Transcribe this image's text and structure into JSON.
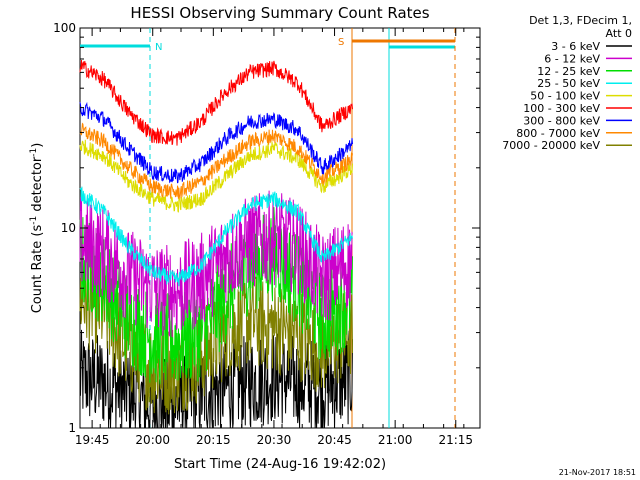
{
  "chart_data": {
    "type": "line",
    "title": "HESSI Observing Summary Count Rates",
    "xlabel": "Start Time (24-Aug-16 19:42:02)",
    "ylabel_pre": "Count Rate (s",
    "ylabel_sup": "-1",
    "ylabel_post": " detector",
    "ylabel_sup2": "-1",
    "ylabel_end": ")",
    "yscale": "log",
    "ylim": [
      1,
      100
    ],
    "y_ticks": [
      {
        "value": 1,
        "label": "1"
      },
      {
        "value": 10,
        "label": "10"
      },
      {
        "value": 100,
        "label": "100"
      }
    ],
    "xlim_minutes": [
      0,
      99
    ],
    "x_ticks": [
      {
        "minute": 3,
        "label": "19:45"
      },
      {
        "minute": 18,
        "label": "20:00"
      },
      {
        "minute": 33,
        "label": "20:15"
      },
      {
        "minute": 48,
        "label": "20:30"
      },
      {
        "minute": 63,
        "label": "20:45"
      },
      {
        "minute": 78,
        "label": "21:00"
      },
      {
        "minute": 93,
        "label": "21:15"
      }
    ],
    "legend_header": [
      "Det 1,3, FDecim 1,",
      "Att 0"
    ],
    "legend_placement": "right",
    "series": [
      {
        "name": "3 - 6 keV",
        "color": "#000000",
        "x": [
          0,
          6,
          12,
          18,
          24,
          30,
          36,
          42,
          48,
          54,
          60,
          67.5
        ],
        "y": [
          1.8,
          1.7,
          1.5,
          1.3,
          1.3,
          1.5,
          1.6,
          1.7,
          1.8,
          1.7,
          1.6,
          1.8
        ]
      },
      {
        "name": "6 - 12 keV",
        "color": "#cc00cc",
        "x": [
          0,
          6,
          12,
          18,
          24,
          30,
          36,
          42,
          48,
          54,
          60,
          67.5
        ],
        "y": [
          8.5,
          7.5,
          5.8,
          5.0,
          4.8,
          5.5,
          7.2,
          8.5,
          9.0,
          8.0,
          5.5,
          7.0
        ]
      },
      {
        "name": "12 - 25 keV",
        "color": "#00dd00",
        "x": [
          0,
          6,
          12,
          18,
          24,
          30,
          36,
          42,
          48,
          54,
          60,
          67.5
        ],
        "y": [
          7.0,
          5.5,
          3.5,
          2.8,
          2.7,
          3.0,
          4.5,
          6.5,
          7.5,
          5.5,
          3.5,
          4.5
        ]
      },
      {
        "name": "25 - 50 keV",
        "color": "#00eeee",
        "x": [
          0,
          6,
          12,
          18,
          24,
          30,
          36,
          42,
          48,
          54,
          60,
          67.5
        ],
        "y": [
          15,
          12,
          8.0,
          6.0,
          5.5,
          6.5,
          9.5,
          13,
          14,
          12,
          7.0,
          9.0
        ]
      },
      {
        "name": "50 - 100 keV",
        "color": "#dddd00",
        "x": [
          0,
          6,
          12,
          18,
          24,
          30,
          36,
          42,
          48,
          54,
          60,
          67.5
        ],
        "y": [
          26,
          23,
          17,
          14,
          13,
          14,
          18,
          23,
          25,
          22,
          16,
          20
        ]
      },
      {
        "name": "100 - 300 keV",
        "color": "#ff0000",
        "x": [
          0,
          6,
          12,
          18,
          24,
          30,
          36,
          42,
          48,
          54,
          60,
          67.5
        ],
        "y": [
          65,
          55,
          38,
          29,
          28,
          34,
          48,
          60,
          63,
          53,
          32,
          40
        ]
      },
      {
        "name": "300 - 800 keV",
        "color": "#0000ff",
        "x": [
          0,
          6,
          12,
          18,
          24,
          30,
          36,
          42,
          48,
          54,
          60,
          67.5
        ],
        "y": [
          40,
          35,
          25,
          19,
          18,
          21,
          28,
          34,
          35,
          31,
          20,
          26
        ]
      },
      {
        "name": "800 - 7000 keV",
        "color": "#ff8800",
        "x": [
          0,
          6,
          12,
          18,
          24,
          30,
          36,
          42,
          48,
          54,
          60,
          67.5
        ],
        "y": [
          31,
          27,
          20,
          16,
          15,
          17,
          22,
          27,
          29,
          25,
          18,
          22
        ]
      },
      {
        "name": "7000 - 20000 keV",
        "color": "#808000",
        "x": [
          0,
          6,
          12,
          18,
          24,
          30,
          36,
          42,
          48,
          54,
          60,
          67.5
        ],
        "y": [
          4.5,
          3.8,
          2.5,
          2.0,
          2.0,
          2.3,
          3.0,
          3.5,
          3.2,
          3.0,
          2.5,
          3.0
        ]
      }
    ],
    "markers": [
      {
        "label": "N",
        "color": "#00dddd"
      },
      {
        "label": "S",
        "color": "#ee7700"
      }
    ],
    "footer": "21-Nov-2017 18:51"
  }
}
